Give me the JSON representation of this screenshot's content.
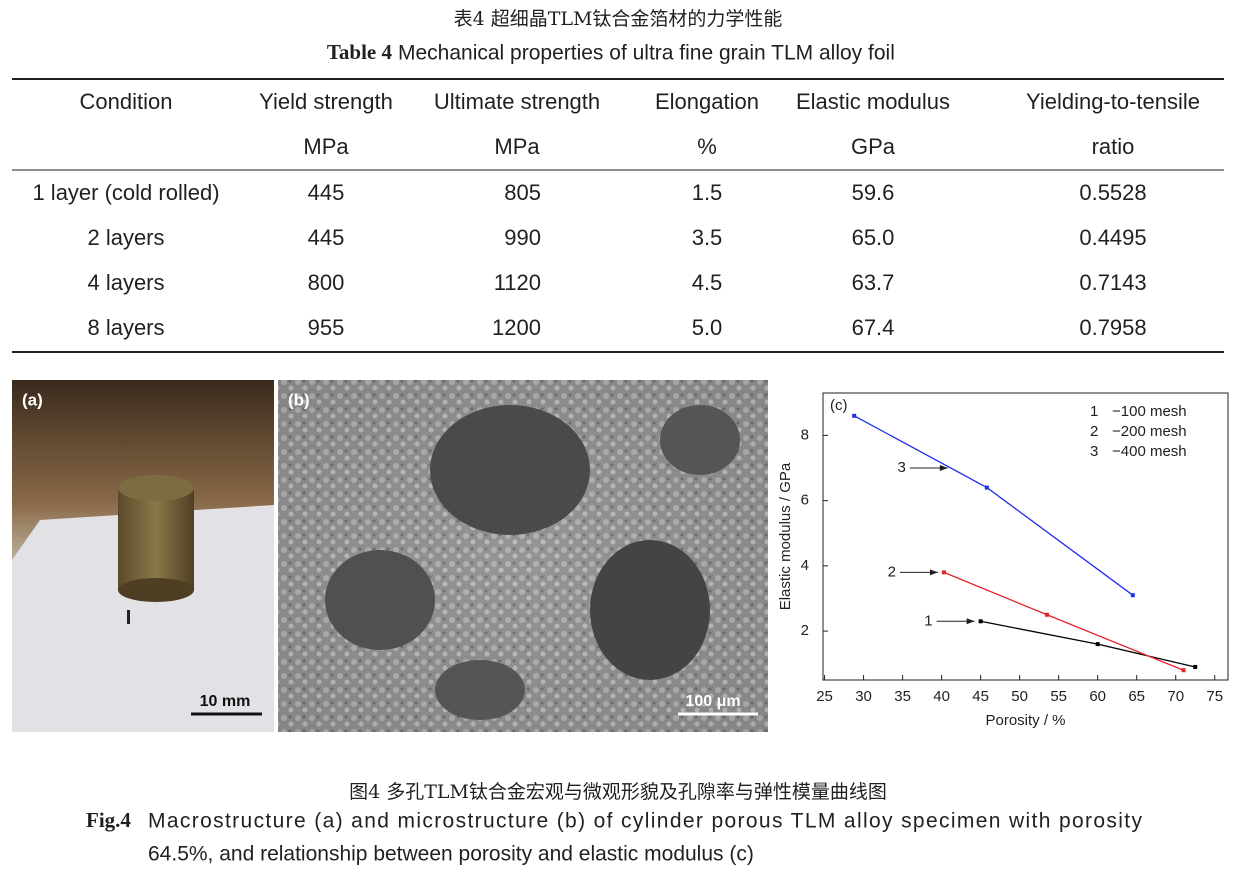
{
  "table_caption": {
    "cn": "表4 超细晶TLM钛合金箔材的力学性能",
    "label": "Table 4",
    "text": "Mechanical properties of ultra fine grain TLM alloy foil"
  },
  "table": {
    "header": [
      [
        "Condition",
        "Yield strength",
        "Ultimate strength",
        "Elongation",
        "Elastic modulus",
        "Yielding-to-tensile"
      ],
      [
        null,
        "MPa",
        "MPa",
        "%",
        "GPa",
        "ratio"
      ]
    ],
    "rows": [
      [
        "1 layer (cold rolled)",
        "445",
        "805",
        "1.5",
        "59.6",
        "0.5528"
      ],
      [
        "2 layers",
        "445",
        "990",
        "3.5",
        "65.0",
        "0.4495"
      ],
      [
        "4 layers",
        "800",
        "1120",
        "4.5",
        "63.7",
        "0.7143"
      ],
      [
        "8 layers",
        "955",
        "1200",
        "5.0",
        "67.4",
        "0.7958"
      ]
    ]
  },
  "panel_a": {
    "label": "(a)",
    "scale": "10 mm"
  },
  "panel_b": {
    "label": "(b)",
    "scale": "100 μm"
  },
  "chart_data": {
    "type": "line",
    "panel_label": "(c)",
    "x_label": "Porosity / %",
    "y_label": "Elastic modulus / GPa",
    "xlim": [
      24.8,
      76.7
    ],
    "ylim": [
      0.5,
      9.3
    ],
    "xticks": [
      25,
      30,
      35,
      40,
      45,
      50,
      55,
      60,
      65,
      70,
      75
    ],
    "yticks": [
      2,
      4,
      6,
      8
    ],
    "series": [
      {
        "label": "1",
        "name": "−100 mesh",
        "color": "#000000",
        "x": [
          45,
          60,
          72.5
        ],
        "values": [
          2.3,
          1.6,
          0.9
        ]
      },
      {
        "label": "2",
        "name": "−200 mesh",
        "color": "#e8202a",
        "x": [
          40.3,
          53.5,
          71
        ],
        "values": [
          3.8,
          2.5,
          0.8
        ]
      },
      {
        "label": "3",
        "name": "−400 mesh",
        "color": "#1f2ee8",
        "x": [
          28.8,
          45.8,
          64.5
        ],
        "values": [
          8.6,
          6.4,
          3.1
        ]
      }
    ]
  },
  "figure_caption": {
    "cn": "图4 多孔TLM钛合金宏观与微观形貌及孔隙率与弹性模量曲线图",
    "label": "Fig.4",
    "line1": "Macrostructure (a) and microstructure (b) of cylinder porous TLM alloy specimen with porosity",
    "line2": "64.5%, and relationship between porosity and elastic modulus (c)"
  }
}
